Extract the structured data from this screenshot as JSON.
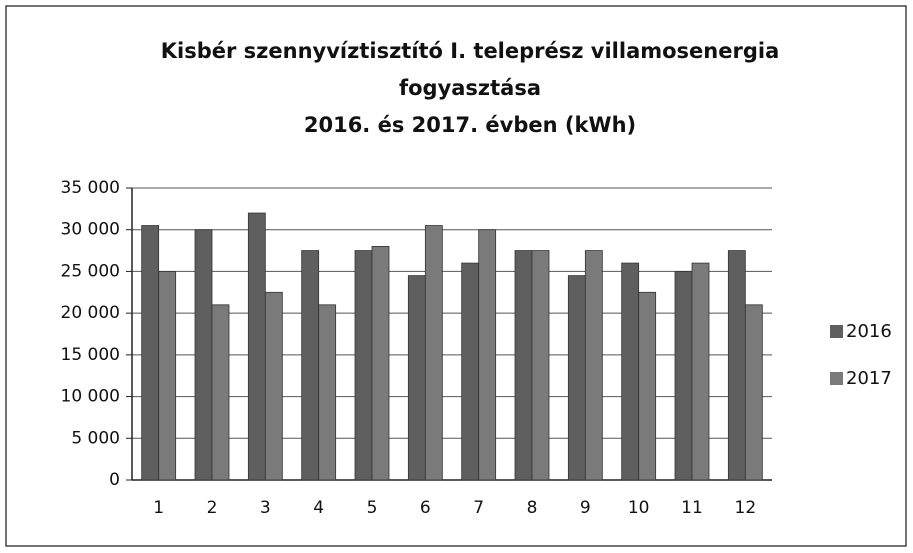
{
  "chart_data": {
    "type": "bar",
    "title": [
      "Kisbér szennyvíztisztító I. teleprész villamosenergia",
      "fogyasztása",
      "2016. és 2017. évben (kWh)"
    ],
    "categories": [
      "1",
      "2",
      "3",
      "4",
      "5",
      "6",
      "7",
      "8",
      "9",
      "10",
      "11",
      "12"
    ],
    "series": [
      {
        "name": "2016",
        "color": "#5f5f5f",
        "values": [
          30500,
          30000,
          32000,
          27500,
          27500,
          24500,
          26000,
          27500,
          24500,
          26000,
          25000,
          27500
        ]
      },
      {
        "name": "2017",
        "color": "#7a7a7a",
        "values": [
          25000,
          21000,
          22500,
          21000,
          28000,
          30500,
          30000,
          27500,
          27500,
          22500,
          26000,
          21000
        ]
      }
    ],
    "ylim": [
      0,
      35000
    ],
    "yticks": [
      0,
      {
        "value": 5000,
        "label": "5 000"
      },
      {
        "value": 10000,
        "label": "10 000"
      },
      {
        "value": 15000,
        "label": "15 000"
      },
      {
        "value": 20000,
        "label": "20 000"
      },
      {
        "value": 25000,
        "label": "25 000"
      },
      {
        "value": 30000,
        "label": "30 000"
      },
      {
        "value": 35000,
        "label": "35 000"
      }
    ],
    "grid": true,
    "legend": "right"
  }
}
